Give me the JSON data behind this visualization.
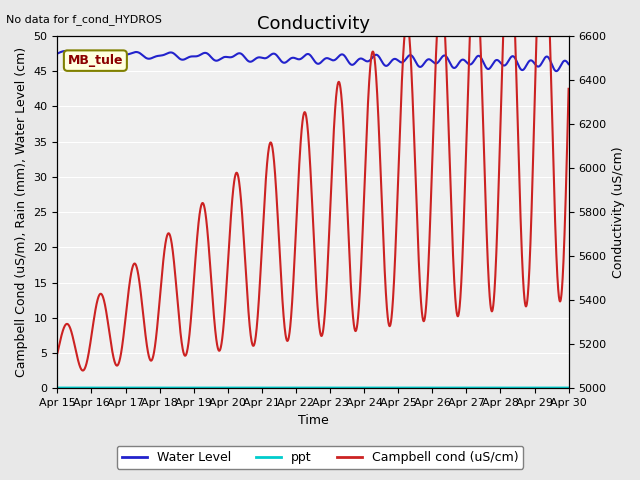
{
  "title": "Conductivity",
  "top_left_text": "No data for f_cond_HYDROS",
  "annotation_text": "MB_tule",
  "xlabel": "Time",
  "ylabel_left": "Campbell Cond (uS/m), Rain (mm), Water Level (cm)",
  "ylabel_right": "Conductivity (uS/cm)",
  "xlim_days": [
    0,
    15
  ],
  "ylim_left": [
    0,
    50
  ],
  "ylim_right": [
    5000,
    6600
  ],
  "x_tick_labels": [
    "Apr 15",
    "Apr 16",
    "Apr 17",
    "Apr 18",
    "Apr 19",
    "Apr 20",
    "Apr 21",
    "Apr 22",
    "Apr 23",
    "Apr 24",
    "Apr 25",
    "Apr 26",
    "Apr 27",
    "Apr 28",
    "Apr 29",
    "Apr 30"
  ],
  "right_yticks": [
    5000,
    5200,
    5400,
    5600,
    5800,
    6000,
    6200,
    6400,
    6600
  ],
  "left_yticks": [
    0,
    5,
    10,
    15,
    20,
    25,
    30,
    35,
    40,
    45,
    50
  ],
  "background_color": "#e8e8e8",
  "plot_bg_color": "#f0f0f0",
  "water_level_color": "#2222cc",
  "ppt_color": "#00cccc",
  "campbell_cond_color": "#cc2222",
  "legend_labels": [
    "Water Level",
    "ppt",
    "Campbell cond (uS/cm)"
  ],
  "title_fontsize": 13,
  "label_fontsize": 9,
  "tick_fontsize": 8
}
